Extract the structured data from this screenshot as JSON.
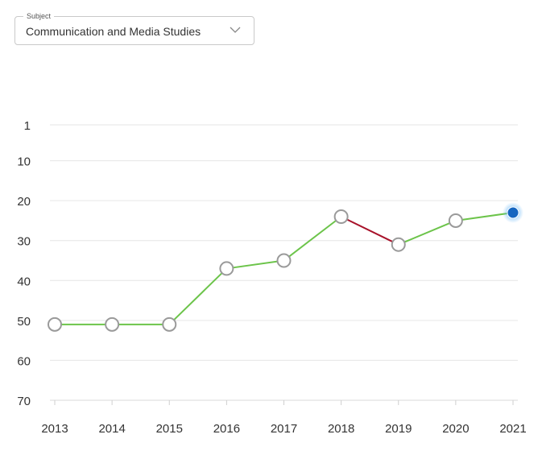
{
  "subject_select": {
    "legend": "Subject",
    "value": "Communication and Media Studies"
  },
  "chart_data": {
    "type": "line",
    "title": "",
    "xlabel": "",
    "ylabel": "",
    "y_inverted": true,
    "ylim": [
      70,
      1
    ],
    "yticks": [
      1,
      10,
      20,
      30,
      40,
      50,
      60,
      70
    ],
    "x": [
      2013,
      2014,
      2015,
      2016,
      2017,
      2018,
      2019,
      2020,
      2021
    ],
    "series": [
      {
        "values": [
          51,
          51,
          51,
          37,
          35,
          24,
          31,
          25,
          23
        ]
      }
    ],
    "grid": true,
    "colors": {
      "up": "#6cc44a",
      "down": "#a8122a",
      "point_stroke": "#9a9a9a",
      "current_point": "#1565c0",
      "grid": "#e6e6e6"
    }
  }
}
